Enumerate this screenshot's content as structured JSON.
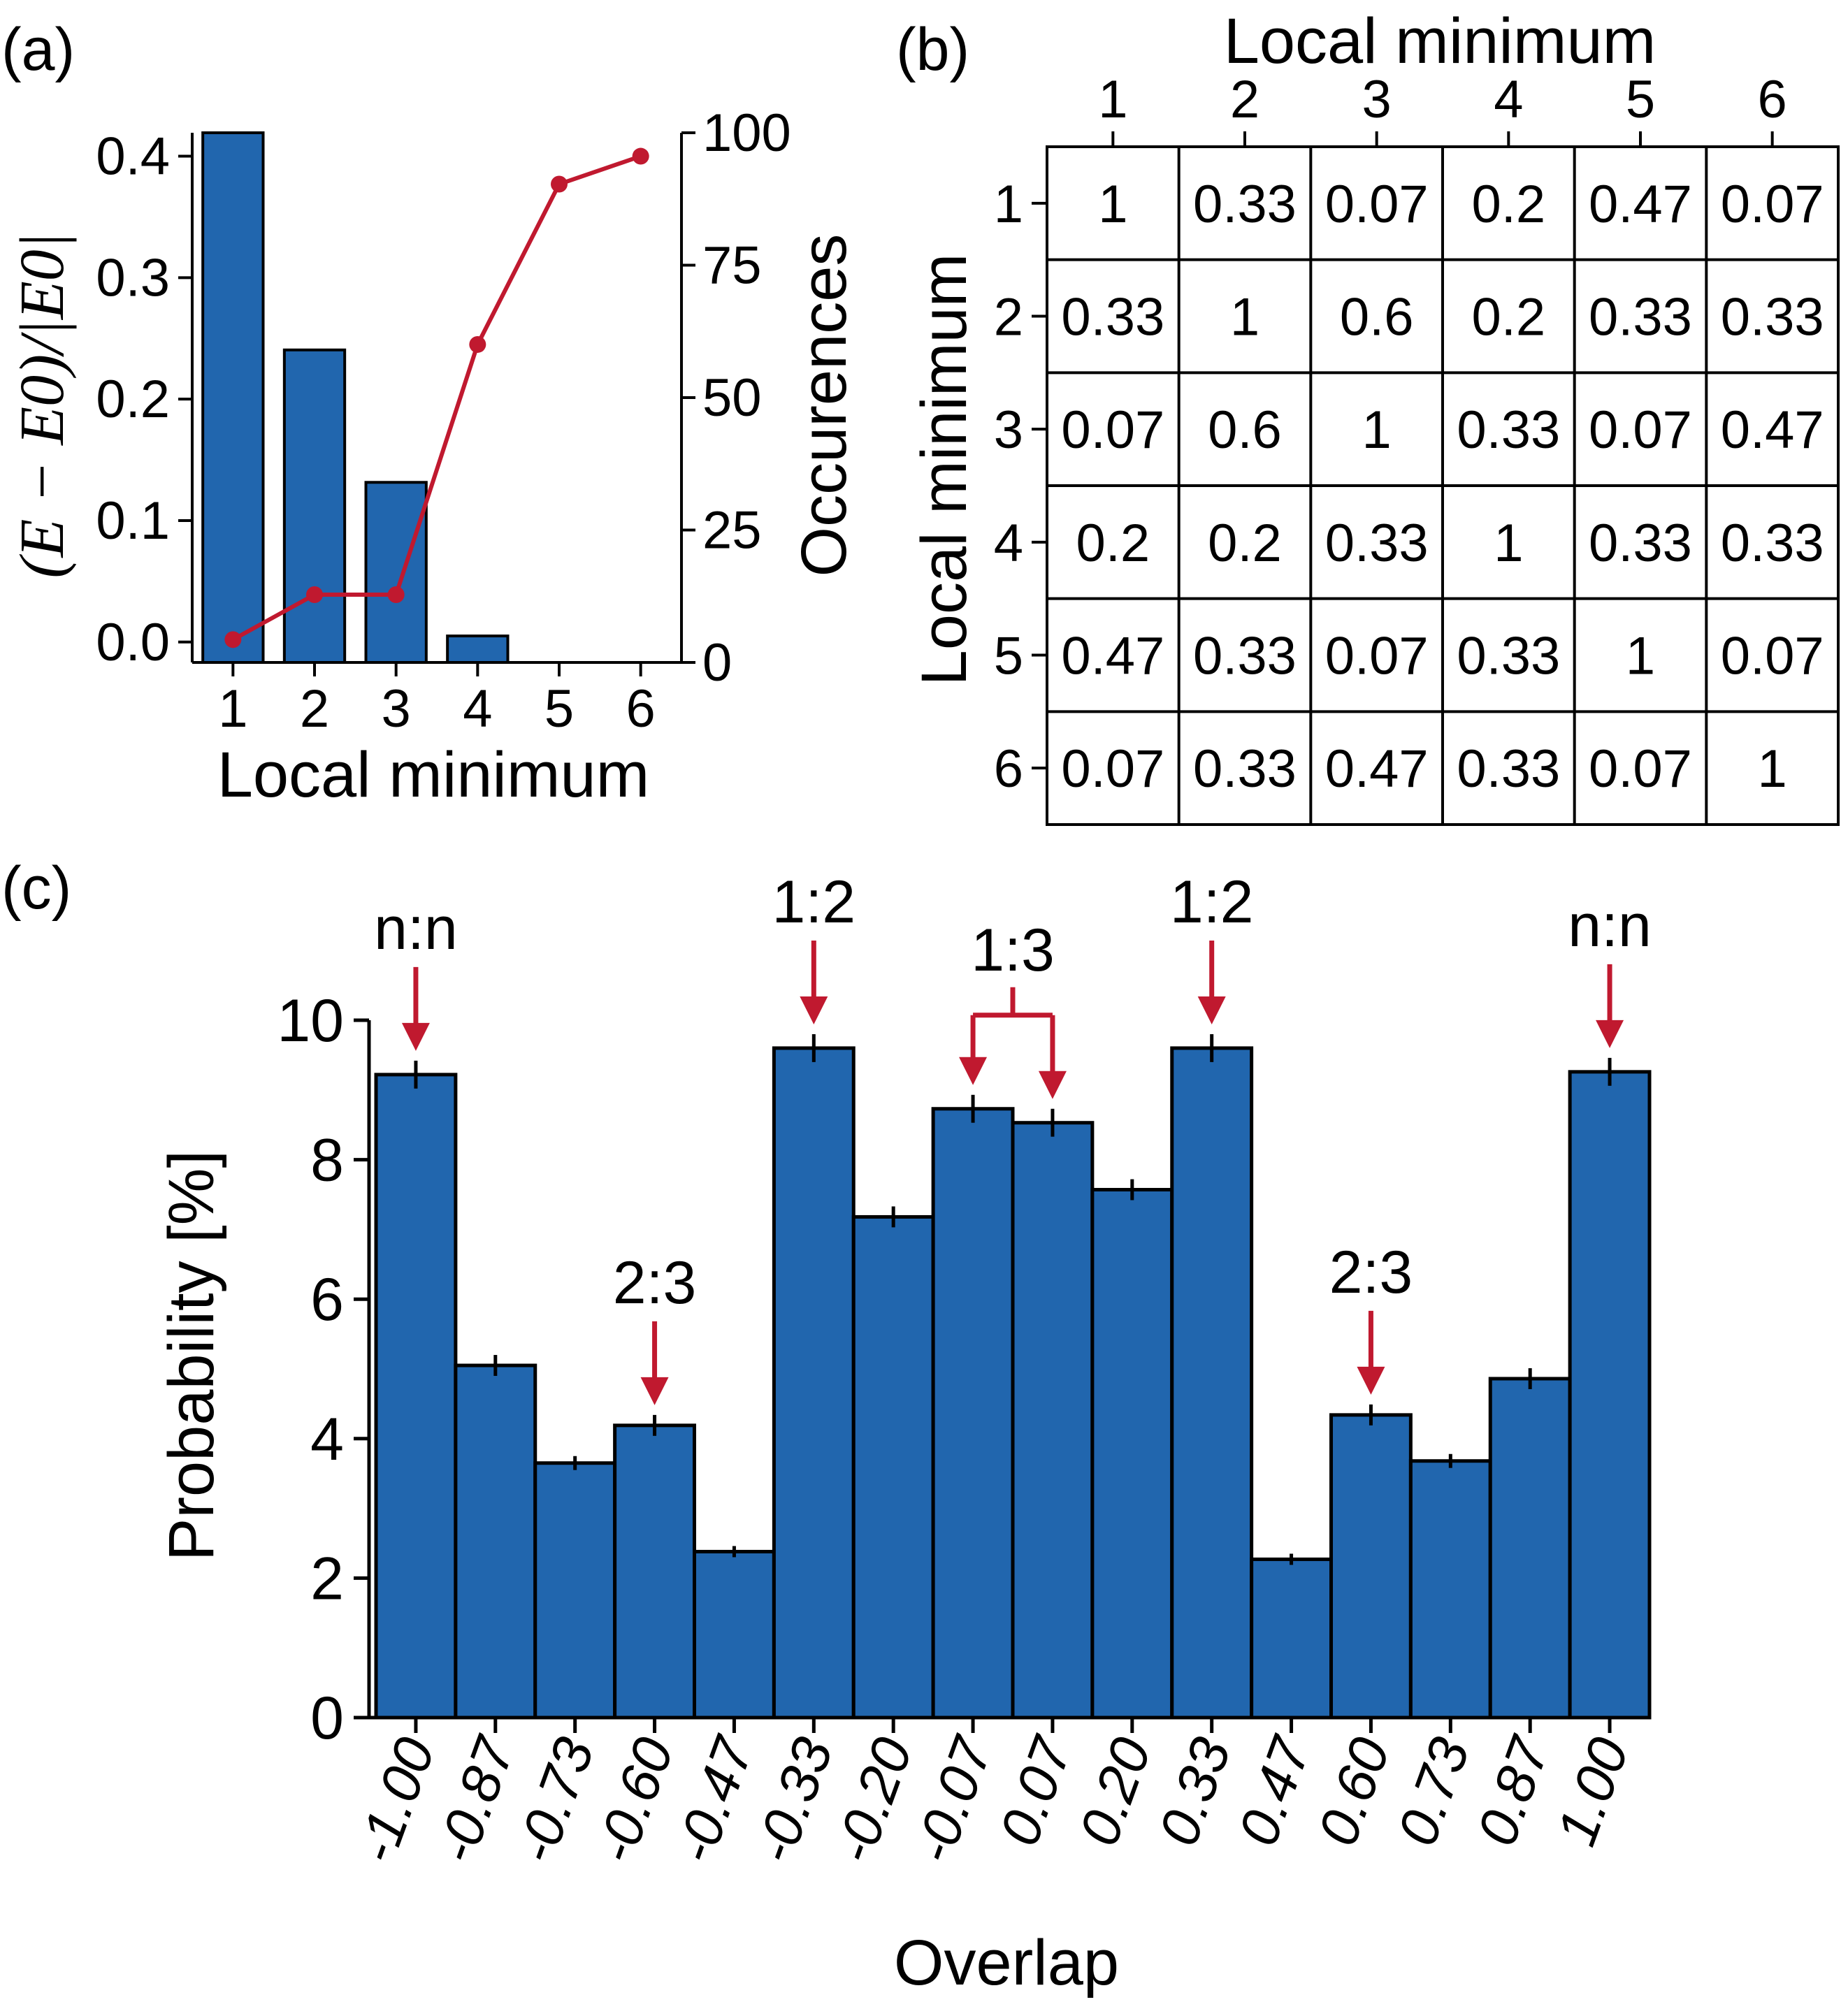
{
  "colors": {
    "bar": "#2166ae",
    "line": "#c0192f",
    "left_axis": "#c0192f",
    "right_axis": "#1a4f8f",
    "frame": "#000000"
  },
  "chart_data": [
    {
      "panel": "(a)",
      "type": "bar+line",
      "xlabel": "Local minimum",
      "ylabel_left": "(E − E0)/|E0|",
      "ylabel_right": "Occurences",
      "categories": [
        "1",
        "2",
        "3",
        "4",
        "5",
        "6"
      ],
      "series": [
        {
          "name": "Occurences",
          "kind": "bar",
          "axis": "right",
          "values": [
            100,
            59,
            34,
            5,
            0,
            0
          ]
        },
        {
          "name": "(E − E0)/|E0|",
          "kind": "line",
          "axis": "left",
          "values": [
            0.002,
            0.039,
            0.039,
            0.245,
            0.377,
            0.4
          ]
        }
      ],
      "ylim_left": [
        -0.0168,
        0.4193
      ],
      "ylim_right": [
        0,
        100
      ],
      "yticks_left": [
        "0.0",
        "0.1",
        "0.2",
        "0.3",
        "0.4"
      ],
      "yticks_right": [
        "0",
        "25",
        "50",
        "75",
        "100"
      ]
    },
    {
      "panel": "(b)",
      "type": "table",
      "title": "Local minimum",
      "ylabel": "Local minimum",
      "columns": [
        "1",
        "2",
        "3",
        "4",
        "5",
        "6"
      ],
      "rows": [
        "1",
        "2",
        "3",
        "4",
        "5",
        "6"
      ],
      "cells": [
        [
          "1",
          "0.33",
          "0.07",
          "0.2",
          "0.47",
          "0.07"
        ],
        [
          "0.33",
          "1",
          "0.6",
          "0.2",
          "0.33",
          "0.33"
        ],
        [
          "0.07",
          "0.6",
          "1",
          "0.33",
          "0.07",
          "0.47"
        ],
        [
          "0.2",
          "0.2",
          "0.33",
          "1",
          "0.33",
          "0.33"
        ],
        [
          "0.47",
          "0.33",
          "0.07",
          "0.33",
          "1",
          "0.07"
        ],
        [
          "0.07",
          "0.33",
          "0.47",
          "0.33",
          "0.07",
          "1"
        ]
      ]
    },
    {
      "panel": "(c)",
      "type": "bar",
      "xlabel": "Overlap",
      "ylabel": "Probability [%]",
      "categories": [
        "-1.00",
        "-0.87",
        "-0.73",
        "-0.60",
        "-0.47",
        "-0.33",
        "-0.20",
        "-0.07",
        "0.07",
        "0.20",
        "0.33",
        "0.47",
        "0.60",
        "0.73",
        "0.87",
        "1.00"
      ],
      "values": [
        9.22,
        5.05,
        3.65,
        4.19,
        2.38,
        9.6,
        7.18,
        8.73,
        8.53,
        7.57,
        9.6,
        2.27,
        4.34,
        3.68,
        4.86,
        9.26
      ],
      "errors": [
        0.2,
        0.15,
        0.1,
        0.15,
        0.08,
        0.2,
        0.15,
        0.2,
        0.2,
        0.15,
        0.2,
        0.08,
        0.15,
        0.1,
        0.15,
        0.2
      ],
      "ylim": [
        0,
        10
      ],
      "yticks": [
        "0",
        "2",
        "4",
        "6",
        "8",
        "10"
      ],
      "annotations": [
        {
          "label": "n:n",
          "targets": [
            0
          ]
        },
        {
          "label": "2:3",
          "targets": [
            3
          ]
        },
        {
          "label": "1:2",
          "targets": [
            5
          ]
        },
        {
          "label": "1:3",
          "targets": [
            7,
            8
          ]
        },
        {
          "label": "1:2",
          "targets": [
            10
          ]
        },
        {
          "label": "2:3",
          "targets": [
            12
          ]
        },
        {
          "label": "n:n",
          "targets": [
            15
          ]
        }
      ]
    }
  ]
}
